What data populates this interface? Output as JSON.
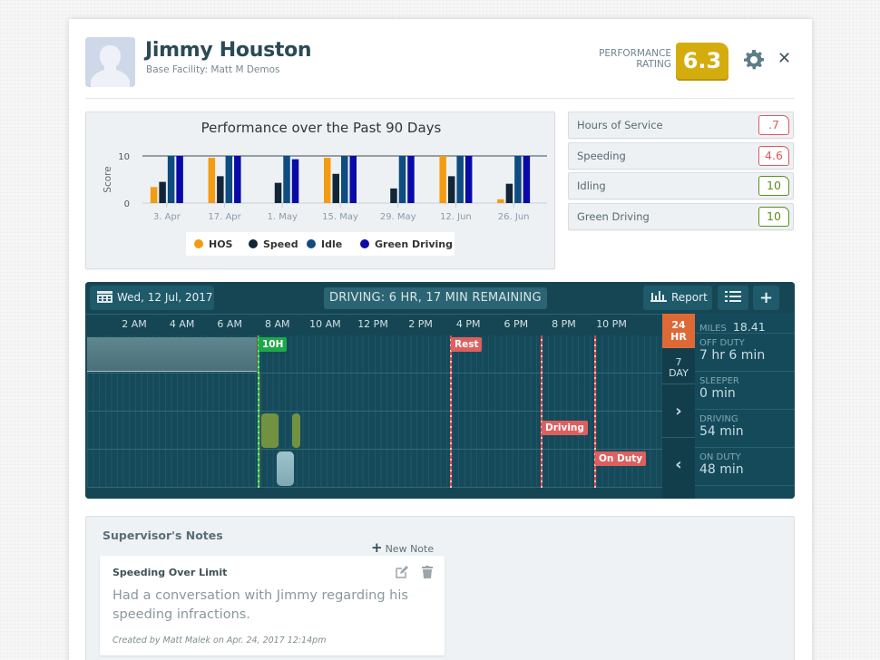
{
  "driver": {
    "name": "Jimmy Houston",
    "facility": "Base Facility: Matt M Demos"
  },
  "performance": {
    "label_line1": "PERFORMANCE",
    "label_line2": "RATING",
    "value": "6.3",
    "badge_color": "#d4ac0d"
  },
  "scores": [
    {
      "label": "Hours of Service",
      "value": ".7",
      "status": "bad",
      "color": "#e0575e"
    },
    {
      "label": "Speeding",
      "value": "4.6",
      "status": "bad",
      "color": "#e0575e"
    },
    {
      "label": "Idling",
      "value": "10",
      "status": "good",
      "color": "#5a8f1e"
    },
    {
      "label": "Green Driving",
      "value": "10",
      "status": "good",
      "color": "#5a8f1e"
    }
  ],
  "chart_data": {
    "type": "bar",
    "title": "Performance over the Past 90 Days",
    "xlabel": "",
    "ylabel": "Score",
    "ylim": [
      0,
      10
    ],
    "yticks": [
      "0",
      "10"
    ],
    "categories": [
      "3. Apr",
      "17. Apr",
      "1. May",
      "15. May",
      "29. May",
      "12. Jun",
      "26. Jun"
    ],
    "series": [
      {
        "name": "HOS",
        "color": "#f39c12",
        "values": [
          3.4,
          9.6,
          0,
          9.6,
          0,
          10,
          0.8
        ]
      },
      {
        "name": "Speed",
        "color": "#12263a",
        "values": [
          4.5,
          5.7,
          4.3,
          6.2,
          3.1,
          5.7,
          4.1
        ]
      },
      {
        "name": "Idle",
        "color": "#0f4c81",
        "values": [
          10,
          10,
          10,
          10,
          10,
          10,
          10
        ]
      },
      {
        "name": "Green Driving",
        "color": "#0a0aa8",
        "values": [
          10,
          10,
          9.3,
          10,
          10,
          10,
          10
        ]
      }
    ],
    "legend_position": "bottom",
    "grid": false
  },
  "timeline": {
    "date": "Wed, 12 Jul, 2017",
    "status": "DRIVING: 6 HR, 17 MIN REMAINING",
    "report_label": "Report",
    "hours": [
      "2 AM",
      "4 AM",
      "6 AM",
      "8 AM",
      "10 AM",
      "12 PM",
      "2 PM",
      "4 PM",
      "6 PM",
      "8 PM",
      "10 PM"
    ],
    "lanes": [
      "Off Duty",
      "Sleeper",
      "Driving",
      "On Duty"
    ],
    "markers": [
      {
        "label": "10H",
        "type": "reset",
        "color": "#1fa84a"
      },
      {
        "label": "Rest",
        "type": "violation",
        "color": "#de5f5f"
      },
      {
        "label": "Driving",
        "type": "violation",
        "color": "#de5f5f"
      },
      {
        "label": "On Duty",
        "type": "violation",
        "color": "#de5f5f"
      }
    ],
    "view_tabs": {
      "day": "24\nHR",
      "day_line1": "24",
      "day_line2": "HR",
      "week_line1": "7",
      "week_line2": "DAY",
      "active": "24 HR"
    },
    "miles_label": "MILES",
    "miles_value": "18.41",
    "stats": [
      {
        "label": "OFF DUTY",
        "value": "7 hr 6 min"
      },
      {
        "label": "SLEEPER",
        "value": "0 min"
      },
      {
        "label": "DRIVING",
        "value": "54 min"
      },
      {
        "label": "ON DUTY",
        "value": "48 min"
      }
    ]
  },
  "notes": {
    "title": "Supervisor's Notes",
    "new_note_label": "New Note",
    "items": [
      {
        "title": "Speeding Over Limit",
        "body": "Had a conversation with Jimmy regarding his speeding infractions.",
        "meta": "Created by Matt Malek on Apr. 24, 2017 12:14pm"
      }
    ]
  }
}
